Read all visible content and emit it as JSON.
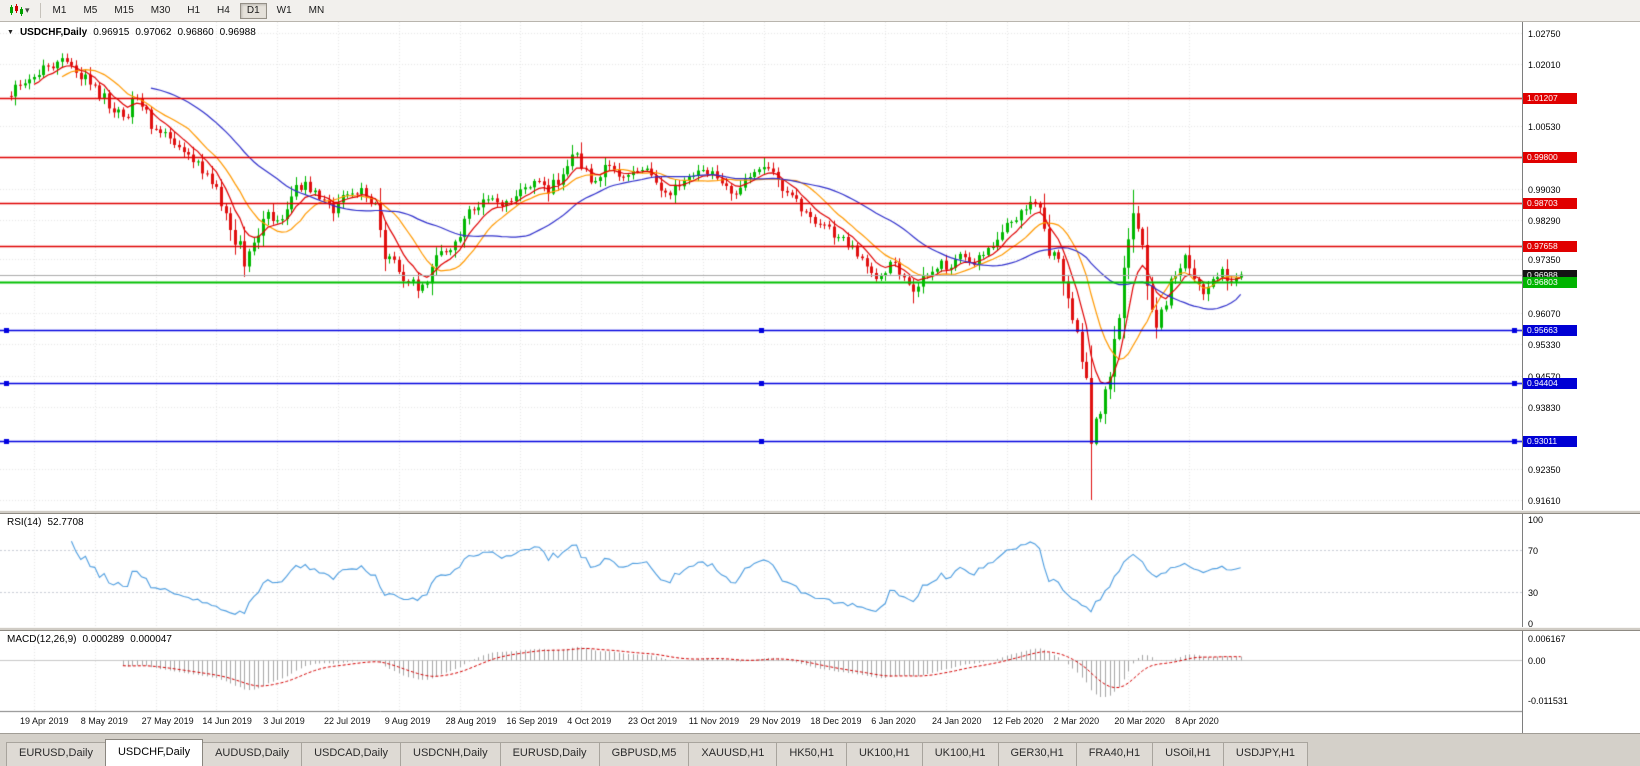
{
  "toolbar": {
    "timeframes": [
      "M1",
      "M5",
      "M15",
      "M30",
      "H1",
      "H4",
      "D1",
      "W1",
      "MN"
    ],
    "active_timeframe": "D1"
  },
  "icons": {
    "chevron_down": "▾",
    "title_marker": "▼"
  },
  "chart": {
    "symbol_title": "USDCHF,Daily",
    "ohlc": {
      "open": "0.96915",
      "high": "0.97062",
      "low": "0.96860",
      "close": "0.96988"
    },
    "price_axis": {
      "ticks": [
        {
          "label": "1.02750",
          "value": 1.0275
        },
        {
          "label": "1.02010",
          "value": 1.0201
        },
        {
          "label": "1.00530",
          "value": 1.0053
        },
        {
          "label": "0.99030",
          "value": 0.9903
        },
        {
          "label": "0.98290",
          "value": 0.9829
        },
        {
          "label": "0.97350",
          "value": 0.9735
        },
        {
          "label": "0.96070",
          "value": 0.9607
        },
        {
          "label": "0.95330",
          "value": 0.9533
        },
        {
          "label": "0.94570",
          "value": 0.9457
        },
        {
          "label": "0.93830",
          "value": 0.9383
        },
        {
          "label": "0.92350",
          "value": 0.9235
        },
        {
          "label": "0.91610",
          "value": 0.9161
        }
      ],
      "badges": [
        {
          "label": "1.01207",
          "value": 1.01207,
          "kind": "resistance-red",
          "color": "#e00000"
        },
        {
          "label": "0.99800",
          "value": 0.998,
          "kind": "resistance-red",
          "color": "#e00000"
        },
        {
          "label": "0.98703",
          "value": 0.98703,
          "kind": "resistance-red",
          "color": "#e00000"
        },
        {
          "label": "0.97658",
          "value": 0.97658,
          "kind": "resistance-red",
          "color": "#e00000"
        },
        {
          "label": "0.96988",
          "value": 0.96988,
          "kind": "current-price",
          "color": "#141414"
        },
        {
          "label": "0.96803",
          "value": 0.96803,
          "kind": "support-green",
          "color": "#00b400"
        },
        {
          "label": "0.95663",
          "value": 0.95663,
          "kind": "support-blue",
          "color": "#0000d4"
        },
        {
          "label": "0.94404",
          "value": 0.94404,
          "kind": "support-blue",
          "color": "#0000d4"
        },
        {
          "label": "0.93011",
          "value": 0.93011,
          "kind": "support-blue",
          "color": "#0000d4"
        }
      ]
    }
  },
  "rsi": {
    "name": "RSI(14)",
    "value": "52.7708",
    "period": 14,
    "color": "#4d9de0",
    "axis": [
      {
        "label": "100",
        "value": 100
      },
      {
        "label": "70",
        "value": 70
      },
      {
        "label": "30",
        "value": 30
      },
      {
        "label": "0",
        "value": 0
      }
    ]
  },
  "macd": {
    "name": "MACD(12,26,9)",
    "main": "0.000289",
    "signal": "0.000047",
    "hist_color": "#a6a6a6",
    "signal_color": "#d40000",
    "axis": [
      {
        "label": "0.006167",
        "value": 0.006167
      },
      {
        "label": "0.00",
        "value": 0
      },
      {
        "label": "-0.011531",
        "value": -0.011531
      }
    ]
  },
  "colors": {
    "grid": "#e7e7e7",
    "candle_up": "#00b800",
    "candle_down": "#e01010",
    "current_price_line": "#aaaaaa",
    "background": "#ffffff"
  },
  "tabs": {
    "active_index": 1,
    "items": [
      {
        "label": "EURUSD,Daily"
      },
      {
        "label": "USDCHF,Daily"
      },
      {
        "label": "AUDUSD,Daily"
      },
      {
        "label": "USDCAD,Daily"
      },
      {
        "label": "USDCNH,Daily"
      },
      {
        "label": "EURUSD,Daily"
      },
      {
        "label": "GBPUSD,M5"
      },
      {
        "label": "XAUUSD,H1"
      },
      {
        "label": "HK50,H1"
      },
      {
        "label": "UK100,H1"
      },
      {
        "label": "UK100,H1"
      },
      {
        "label": "GER30,H1"
      },
      {
        "label": "FRA40,H1"
      },
      {
        "label": "USOil,H1"
      },
      {
        "label": "USDJPY,H1"
      }
    ]
  },
  "chart_data": {
    "type": "candlestick",
    "symbol": "USDCHF",
    "timeframe": "Daily",
    "y_range": [
      0.9161,
      1.0275
    ],
    "bars_per_label": 13,
    "x_axis_labels": [
      "19 Apr 2019",
      "8 May 2019",
      "27 May 2019",
      "14 Jun 2019",
      "3 Jul 2019",
      "22 Jul 2019",
      "9 Aug 2019",
      "28 Aug 2019",
      "16 Sep 2019",
      "4 Oct 2019",
      "23 Oct 2019",
      "11 Nov 2019",
      "29 Nov 2019",
      "18 Dec 2019",
      "6 Jan 2020",
      "24 Jan 2020",
      "12 Feb 2020",
      "2 Mar 2020",
      "20 Mar 2020",
      "8 Apr 2020"
    ],
    "last_ohlc": {
      "open": 0.96915,
      "high": 0.97062,
      "low": 0.9686,
      "close": 0.96988
    },
    "current_price": 0.96988,
    "close_anchors_note": "approximate daily closes read from chart; [day_index, close]; day 0 = 19 Apr 2019",
    "close_anchors": [
      [
        -6,
        1.0125
      ],
      [
        -3,
        1.015
      ],
      [
        0,
        1.017
      ],
      [
        3,
        1.0195
      ],
      [
        6,
        1.0215
      ],
      [
        9,
        1.018
      ],
      [
        13,
        1.015
      ],
      [
        16,
        1.0095
      ],
      [
        19,
        1.0075
      ],
      [
        22,
        1.012
      ],
      [
        26,
        1.0045
      ],
      [
        30,
        1.0008
      ],
      [
        33,
        0.9985
      ],
      [
        36,
        0.994
      ],
      [
        39,
        0.9908
      ],
      [
        41,
        0.9845
      ],
      [
        43,
        0.977
      ],
      [
        45,
        0.9718
      ],
      [
        47,
        0.9775
      ],
      [
        50,
        0.9848
      ],
      [
        52,
        0.9828
      ],
      [
        55,
        0.9885
      ],
      [
        58,
        0.992
      ],
      [
        61,
        0.9878
      ],
      [
        64,
        0.9845
      ],
      [
        67,
        0.989
      ],
      [
        70,
        0.9905
      ],
      [
        72,
        0.9868
      ],
      [
        74,
        0.9805
      ],
      [
        76,
        0.9742
      ],
      [
        78,
        0.9705
      ],
      [
        80,
        0.9682
      ],
      [
        82,
        0.966
      ],
      [
        85,
        0.9718
      ],
      [
        88,
        0.9752
      ],
      [
        91,
        0.9788
      ],
      [
        94,
        0.9852
      ],
      [
        97,
        0.9878
      ],
      [
        100,
        0.9862
      ],
      [
        104,
        0.9902
      ],
      [
        107,
        0.9922
      ],
      [
        110,
        0.9892
      ],
      [
        113,
        0.9938
      ],
      [
        115,
        0.9985
      ],
      [
        117,
        0.9952
      ],
      [
        120,
        0.9922
      ],
      [
        123,
        0.9958
      ],
      [
        126,
        0.9932
      ],
      [
        130,
        0.9948
      ],
      [
        133,
        0.9918
      ],
      [
        136,
        0.9888
      ],
      [
        139,
        0.9922
      ],
      [
        143,
        0.9948
      ],
      [
        146,
        0.9928
      ],
      [
        149,
        0.9892
      ],
      [
        152,
        0.9928
      ],
      [
        156,
        0.9955
      ],
      [
        159,
        0.9925
      ],
      [
        162,
        0.9888
      ],
      [
        165,
        0.9848
      ],
      [
        169,
        0.9818
      ],
      [
        172,
        0.9788
      ],
      [
        175,
        0.9768
      ],
      [
        178,
        0.9718
      ],
      [
        180,
        0.9688
      ],
      [
        182,
        0.9702
      ],
      [
        184,
        0.9728
      ],
      [
        186,
        0.9692
      ],
      [
        188,
        0.9658
      ],
      [
        191,
        0.9698
      ],
      [
        194,
        0.9732
      ],
      [
        196,
        0.9715
      ],
      [
        198,
        0.9748
      ],
      [
        201,
        0.9722
      ],
      [
        204,
        0.9762
      ],
      [
        208,
        0.9822
      ],
      [
        211,
        0.9852
      ],
      [
        214,
        0.9868
      ],
      [
        216,
        0.9808
      ],
      [
        218,
        0.9752
      ],
      [
        220,
        0.9682
      ],
      [
        221,
        0.9642
      ],
      [
        223,
        0.9562
      ],
      [
        225,
        0.9452
      ],
      [
        226,
        0.9295
      ],
      [
        227,
        0.9355
      ],
      [
        229,
        0.9425
      ],
      [
        231,
        0.9545
      ],
      [
        233,
        0.9715
      ],
      [
        235,
        0.9845
      ],
      [
        236,
        0.9808
      ],
      [
        238,
        0.9672
      ],
      [
        240,
        0.9572
      ],
      [
        242,
        0.9625
      ],
      [
        244,
        0.9695
      ],
      [
        246,
        0.9745
      ],
      [
        248,
        0.9688
      ],
      [
        250,
        0.9652
      ],
      [
        252,
        0.9688
      ],
      [
        254,
        0.9712
      ],
      [
        256,
        0.9682
      ],
      [
        258,
        0.96988
      ]
    ],
    "extreme_overrides": [
      {
        "day": 6,
        "high": 1.0226
      },
      {
        "day": 45,
        "low": 0.9693
      },
      {
        "day": 82,
        "low": 0.9659
      },
      {
        "day": 115,
        "high": 1.0008
      },
      {
        "day": 156,
        "high": 0.9978
      },
      {
        "day": 188,
        "low": 0.963
      },
      {
        "day": 214,
        "high": 0.9872
      },
      {
        "day": 226,
        "low": 0.9161
      },
      {
        "day": 235,
        "high": 0.9901
      }
    ],
    "horizontal_lines": [
      {
        "value": 1.01207,
        "color": "#e00000",
        "width": 1.6,
        "handles": false
      },
      {
        "value": 0.998,
        "color": "#e00000",
        "width": 1.6,
        "handles": false
      },
      {
        "value": 0.98703,
        "color": "#e00000",
        "width": 1.6,
        "handles": false
      },
      {
        "value": 0.97658,
        "color": "#e00000",
        "width": 1.6,
        "handles": false
      },
      {
        "value": 0.96803,
        "color": "#00c000",
        "width": 1.8,
        "handles": false
      },
      {
        "value": 0.95663,
        "color": "#0000e0",
        "width": 1.6,
        "handles": true
      },
      {
        "value": 0.94404,
        "color": "#0000e0",
        "width": 1.6,
        "handles": true
      },
      {
        "value": 0.93011,
        "color": "#0000e0",
        "width": 1.6,
        "handles": true
      }
    ],
    "moving_averages": [
      {
        "period": 13,
        "method": "sma",
        "color": "#ff9900"
      },
      {
        "period": 7,
        "method": "ema",
        "color": "#e00000"
      },
      {
        "period": 32,
        "method": "sma",
        "color": "#3030cc"
      }
    ]
  }
}
